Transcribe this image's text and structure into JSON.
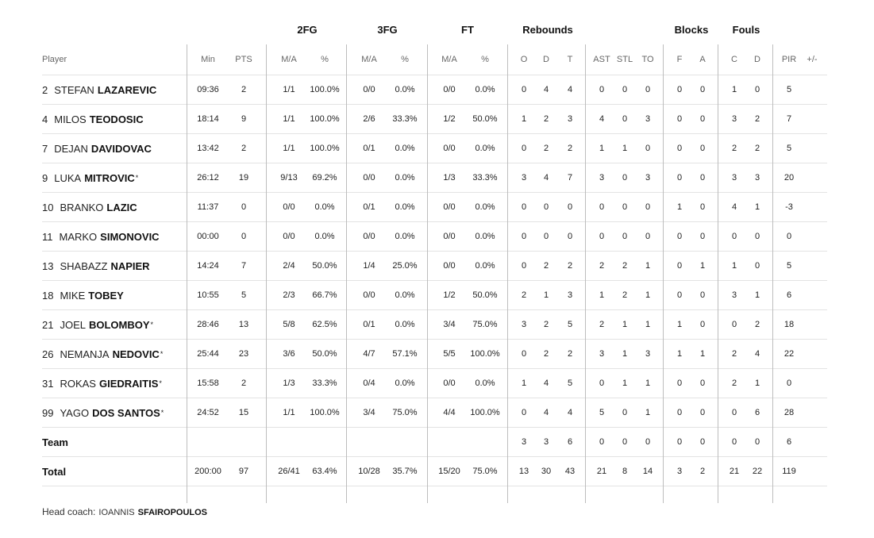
{
  "groups": [
    {
      "key": "2fg",
      "label": "2FG"
    },
    {
      "key": "3fg",
      "label": "3FG"
    },
    {
      "key": "ft",
      "label": "FT"
    },
    {
      "key": "reb",
      "label": "Rebounds"
    },
    {
      "key": "blk",
      "label": "Blocks"
    },
    {
      "key": "fls",
      "label": "Fouls"
    }
  ],
  "header": {
    "player": "Player",
    "stats": [
      "Min",
      "PTS",
      "M/A",
      "%",
      "M/A",
      "%",
      "M/A",
      "%",
      "O",
      "D",
      "T",
      "AST",
      "STL",
      "TO",
      "F",
      "A",
      "C",
      "D",
      "PIR",
      "+/-"
    ]
  },
  "players": [
    {
      "num": "2",
      "first": "STEFAN",
      "last": "LAZAREVIC",
      "star": "",
      "stats": [
        "09:36",
        "2",
        "1/1",
        "100.0%",
        "0/0",
        "0.0%",
        "0/0",
        "0.0%",
        "0",
        "4",
        "4",
        "0",
        "0",
        "0",
        "0",
        "0",
        "1",
        "0",
        "5",
        ""
      ]
    },
    {
      "num": "4",
      "first": "MILOS",
      "last": "TEODOSIC",
      "star": "",
      "stats": [
        "18:14",
        "9",
        "1/1",
        "100.0%",
        "2/6",
        "33.3%",
        "1/2",
        "50.0%",
        "1",
        "2",
        "3",
        "4",
        "0",
        "3",
        "0",
        "0",
        "3",
        "2",
        "7",
        ""
      ]
    },
    {
      "num": "7",
      "first": "DEJAN",
      "last": "DAVIDOVAC",
      "star": "",
      "stats": [
        "13:42",
        "2",
        "1/1",
        "100.0%",
        "0/1",
        "0.0%",
        "0/0",
        "0.0%",
        "0",
        "2",
        "2",
        "1",
        "1",
        "0",
        "0",
        "0",
        "2",
        "2",
        "5",
        ""
      ]
    },
    {
      "num": "9",
      "first": "LUKA",
      "last": "MITROVIC",
      "star": "*",
      "stats": [
        "26:12",
        "19",
        "9/13",
        "69.2%",
        "0/0",
        "0.0%",
        "1/3",
        "33.3%",
        "3",
        "4",
        "7",
        "3",
        "0",
        "3",
        "0",
        "0",
        "3",
        "3",
        "20",
        ""
      ]
    },
    {
      "num": "10",
      "first": "BRANKO",
      "last": "LAZIC",
      "star": "",
      "stats": [
        "11:37",
        "0",
        "0/0",
        "0.0%",
        "0/1",
        "0.0%",
        "0/0",
        "0.0%",
        "0",
        "0",
        "0",
        "0",
        "0",
        "0",
        "1",
        "0",
        "4",
        "1",
        "-3",
        ""
      ]
    },
    {
      "num": "11",
      "first": "MARKO",
      "last": "SIMONOVIC",
      "star": "",
      "stats": [
        "00:00",
        "0",
        "0/0",
        "0.0%",
        "0/0",
        "0.0%",
        "0/0",
        "0.0%",
        "0",
        "0",
        "0",
        "0",
        "0",
        "0",
        "0",
        "0",
        "0",
        "0",
        "0",
        ""
      ]
    },
    {
      "num": "13",
      "first": "SHABAZZ",
      "last": "NAPIER",
      "star": "",
      "stats": [
        "14:24",
        "7",
        "2/4",
        "50.0%",
        "1/4",
        "25.0%",
        "0/0",
        "0.0%",
        "0",
        "2",
        "2",
        "2",
        "2",
        "1",
        "0",
        "1",
        "1",
        "0",
        "5",
        ""
      ]
    },
    {
      "num": "18",
      "first": "MIKE",
      "last": "TOBEY",
      "star": "",
      "stats": [
        "10:55",
        "5",
        "2/3",
        "66.7%",
        "0/0",
        "0.0%",
        "1/2",
        "50.0%",
        "2",
        "1",
        "3",
        "1",
        "2",
        "1",
        "0",
        "0",
        "3",
        "1",
        "6",
        ""
      ]
    },
    {
      "num": "21",
      "first": "JOEL",
      "last": "BOLOMBOY",
      "star": "*",
      "stats": [
        "28:46",
        "13",
        "5/8",
        "62.5%",
        "0/1",
        "0.0%",
        "3/4",
        "75.0%",
        "3",
        "2",
        "5",
        "2",
        "1",
        "1",
        "1",
        "0",
        "0",
        "2",
        "18",
        ""
      ]
    },
    {
      "num": "26",
      "first": "NEMANJA",
      "last": "NEDOVIC",
      "star": "*",
      "stats": [
        "25:44",
        "23",
        "3/6",
        "50.0%",
        "4/7",
        "57.1%",
        "5/5",
        "100.0%",
        "0",
        "2",
        "2",
        "3",
        "1",
        "3",
        "1",
        "1",
        "2",
        "4",
        "22",
        ""
      ]
    },
    {
      "num": "31",
      "first": "ROKAS",
      "last": "GIEDRAITIS",
      "star": "*",
      "stats": [
        "15:58",
        "2",
        "1/3",
        "33.3%",
        "0/4",
        "0.0%",
        "0/0",
        "0.0%",
        "1",
        "4",
        "5",
        "0",
        "1",
        "1",
        "0",
        "0",
        "2",
        "1",
        "0",
        ""
      ]
    },
    {
      "num": "99",
      "first": "YAGO",
      "last": "DOS SANTOS",
      "star": "*",
      "stats": [
        "24:52",
        "15",
        "1/1",
        "100.0%",
        "3/4",
        "75.0%",
        "4/4",
        "100.0%",
        "0",
        "4",
        "4",
        "5",
        "0",
        "1",
        "0",
        "0",
        "0",
        "6",
        "28",
        ""
      ]
    }
  ],
  "team": {
    "label": "Team",
    "stats": [
      "",
      "",
      "",
      "",
      "",
      "",
      "",
      "",
      "3",
      "3",
      "6",
      "0",
      "0",
      "0",
      "0",
      "0",
      "0",
      "0",
      "6",
      ""
    ]
  },
  "total": {
    "label": "Total",
    "stats": [
      "200:00",
      "97",
      "26/41",
      "63.4%",
      "10/28",
      "35.7%",
      "15/20",
      "75.0%",
      "13",
      "30",
      "43",
      "21",
      "8",
      "14",
      "3",
      "2",
      "21",
      "22",
      "119",
      ""
    ]
  },
  "coach": {
    "label": "Head coach:",
    "first": "IOANNIS",
    "last": "SFAIROPOULOS"
  }
}
